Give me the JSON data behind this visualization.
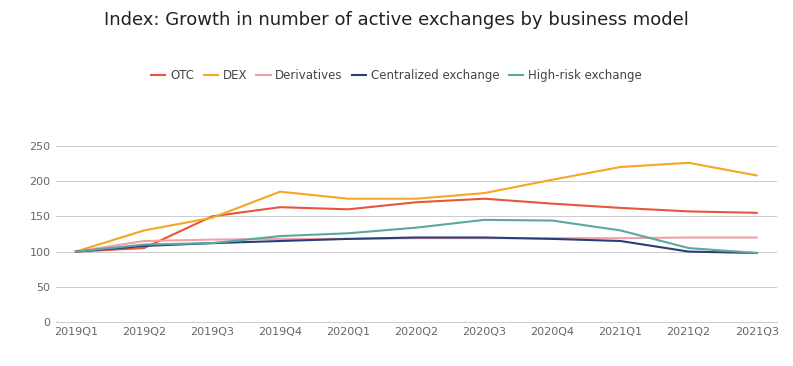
{
  "title": "Index: Growth in number of active exchanges by business model",
  "x_labels": [
    "2019Q1",
    "2019Q2",
    "2019Q3",
    "2019Q4",
    "2020Q1",
    "2020Q2",
    "2020Q3",
    "2020Q4",
    "2021Q1",
    "2021Q2",
    "2021Q3"
  ],
  "series": {
    "OTC": {
      "values": [
        100,
        105,
        150,
        163,
        160,
        170,
        175,
        168,
        162,
        157,
        155
      ],
      "color": "#e8553e",
      "linewidth": 1.5
    },
    "DEX": {
      "values": [
        100,
        130,
        148,
        185,
        175,
        175,
        183,
        202,
        220,
        226,
        208
      ],
      "color": "#f5a623",
      "linewidth": 1.5
    },
    "Derivatives": {
      "values": [
        100,
        115,
        117,
        118,
        118,
        119,
        119,
        119,
        119,
        120,
        120
      ],
      "color": "#f0a0a8",
      "linewidth": 1.5
    },
    "Centralized exchange": {
      "values": [
        100,
        108,
        112,
        115,
        118,
        120,
        120,
        118,
        115,
        100,
        98
      ],
      "color": "#2c3e7a",
      "linewidth": 1.5
    },
    "High-risk exchange": {
      "values": [
        100,
        110,
        112,
        122,
        126,
        134,
        145,
        144,
        130,
        105,
        98
      ],
      "color": "#5ba8a0",
      "linewidth": 1.5
    }
  },
  "ylim": [
    0,
    270
  ],
  "yticks": [
    0,
    50,
    100,
    150,
    200,
    250
  ],
  "background_color": "#ffffff",
  "grid_color": "#cccccc",
  "title_fontsize": 13,
  "legend_fontsize": 8.5,
  "tick_fontsize": 8
}
